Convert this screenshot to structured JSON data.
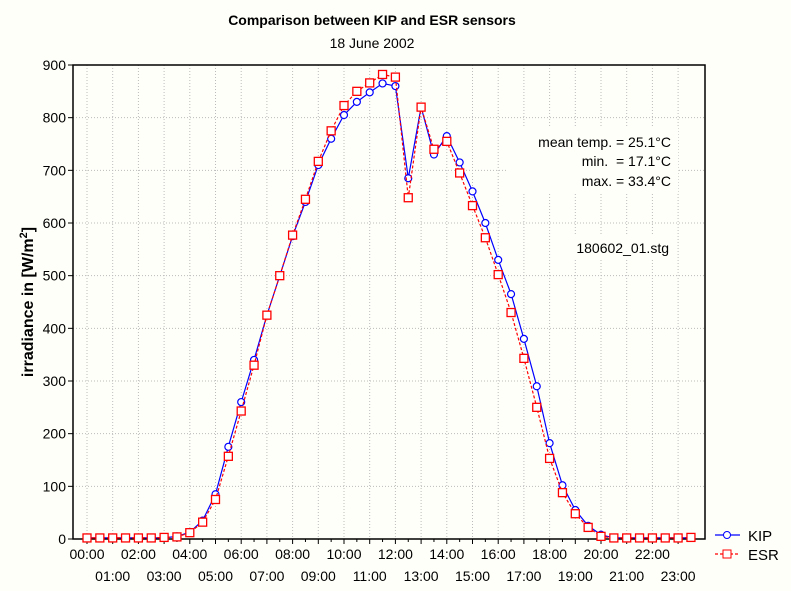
{
  "chart_data": {
    "type": "line",
    "title": "Comparison between KIP and ESR sensors",
    "subtitle": "18 June 2002",
    "xlabel": "",
    "ylabel": "irradiance in [W/m²]",
    "ylabel_main": "irradiance in [W/m",
    "ylabel_sup": "2",
    "ylabel_end": "]",
    "ylim": [
      0,
      900
    ],
    "yticks": [
      "0",
      "100",
      "200",
      "300",
      "400",
      "500",
      "600",
      "700",
      "800",
      "900"
    ],
    "xticks": [
      "00:00",
      "01:00",
      "02:00",
      "03:00",
      "04:00",
      "05:00",
      "06:00",
      "07:00",
      "08:00",
      "09:00",
      "10:00",
      "11:00",
      "12:00",
      "13:00",
      "14:00",
      "15:00",
      "16:00",
      "17:00",
      "18:00",
      "19:00",
      "20:00",
      "21:00",
      "22:00",
      "23:00"
    ],
    "x_hours_step": 0.5,
    "grid": true,
    "legend_position": "bottom-right outside",
    "series": [
      {
        "name": "KIP",
        "color": "#0000ff",
        "marker": "circle",
        "line": "solid",
        "values": [
          2,
          2,
          2,
          2,
          2,
          2,
          2,
          5,
          13,
          35,
          85,
          175,
          260,
          340,
          425,
          500,
          575,
          640,
          710,
          760,
          805,
          830,
          848,
          865,
          860,
          685,
          820,
          730,
          765,
          715,
          660,
          600,
          530,
          465,
          380,
          290,
          182,
          102,
          55,
          25,
          8,
          2,
          2,
          2,
          2,
          2,
          2,
          2
        ]
      },
      {
        "name": "ESR",
        "color": "#ff0000",
        "marker": "square",
        "line": "dashed",
        "values": [
          2,
          2,
          2,
          2,
          2,
          2,
          3,
          4,
          12,
          32,
          75,
          157,
          243,
          330,
          425,
          500,
          577,
          645,
          717,
          775,
          823,
          850,
          866,
          882,
          877,
          648,
          820,
          740,
          755,
          695,
          633,
          572,
          502,
          430,
          343,
          250,
          153,
          88,
          48,
          22,
          5,
          2,
          2,
          2,
          2,
          2,
          2,
          3
        ]
      }
    ],
    "annotations": {
      "mean_temp": "mean temp. = 25.1°C",
      "min_temp": "min.  = 17.1°C",
      "max_temp": "max. = 33.4°C",
      "file": "180602_01.stg"
    }
  }
}
